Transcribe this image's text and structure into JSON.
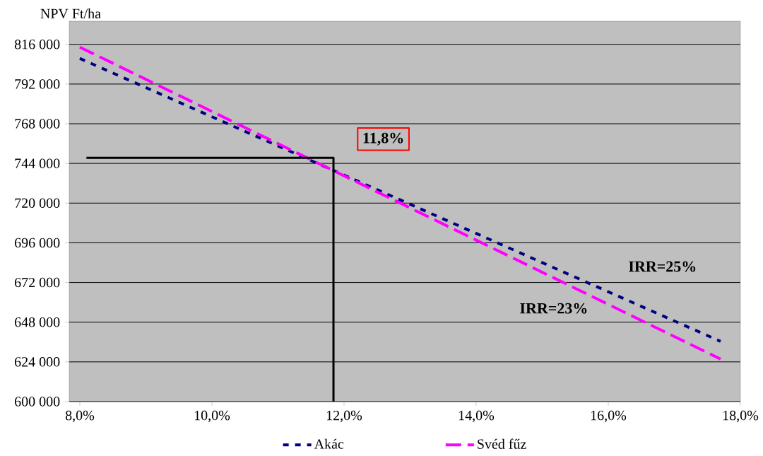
{
  "chart_data": {
    "type": "line",
    "ylabel": "NPV Ft/ha",
    "xlim": [
      7.84,
      18.0
    ],
    "ylim": [
      600000,
      830000
    ],
    "xticks": [
      {
        "value": 8,
        "label": "8,0%"
      },
      {
        "value": 10,
        "label": "10,0%"
      },
      {
        "value": 12,
        "label": "12,0%"
      },
      {
        "value": 14,
        "label": "14,0%"
      },
      {
        "value": 16,
        "label": "16,0%"
      },
      {
        "value": 18,
        "label": "18,0%"
      }
    ],
    "yticks": [
      {
        "value": 600000,
        "label": "600 000"
      },
      {
        "value": 624000,
        "label": "624 000"
      },
      {
        "value": 648000,
        "label": "648 000"
      },
      {
        "value": 672000,
        "label": "672 000"
      },
      {
        "value": 696000,
        "label": "696 000"
      },
      {
        "value": 720000,
        "label": "720 000"
      },
      {
        "value": 744000,
        "label": "744 000"
      },
      {
        "value": 768000,
        "label": "768 000"
      },
      {
        "value": 792000,
        "label": "792 000"
      },
      {
        "value": 816000,
        "label": "816 000"
      }
    ],
    "grid": "y",
    "legend": "bottom",
    "marker": "none",
    "series": [
      {
        "name": "Akác",
        "color": "#000080",
        "line_style": "dotted",
        "x": [
          8.0,
          17.7
        ],
        "values": [
          807500,
          636400
        ]
      },
      {
        "name": "Svéd fűz",
        "color": "#ff00ff",
        "line_style": "dashed",
        "x": [
          8.0,
          17.7
        ],
        "values": [
          814300,
          625700
        ]
      },
      {
        "color": "#000000",
        "line_style": "solid",
        "x": [
          8.1,
          11.84,
          11.84
        ],
        "values": [
          747400,
          747400,
          600000
        ]
      }
    ],
    "annotations": [
      "11,8%",
      "IRR=25%",
      "IRR=23%"
    ]
  }
}
